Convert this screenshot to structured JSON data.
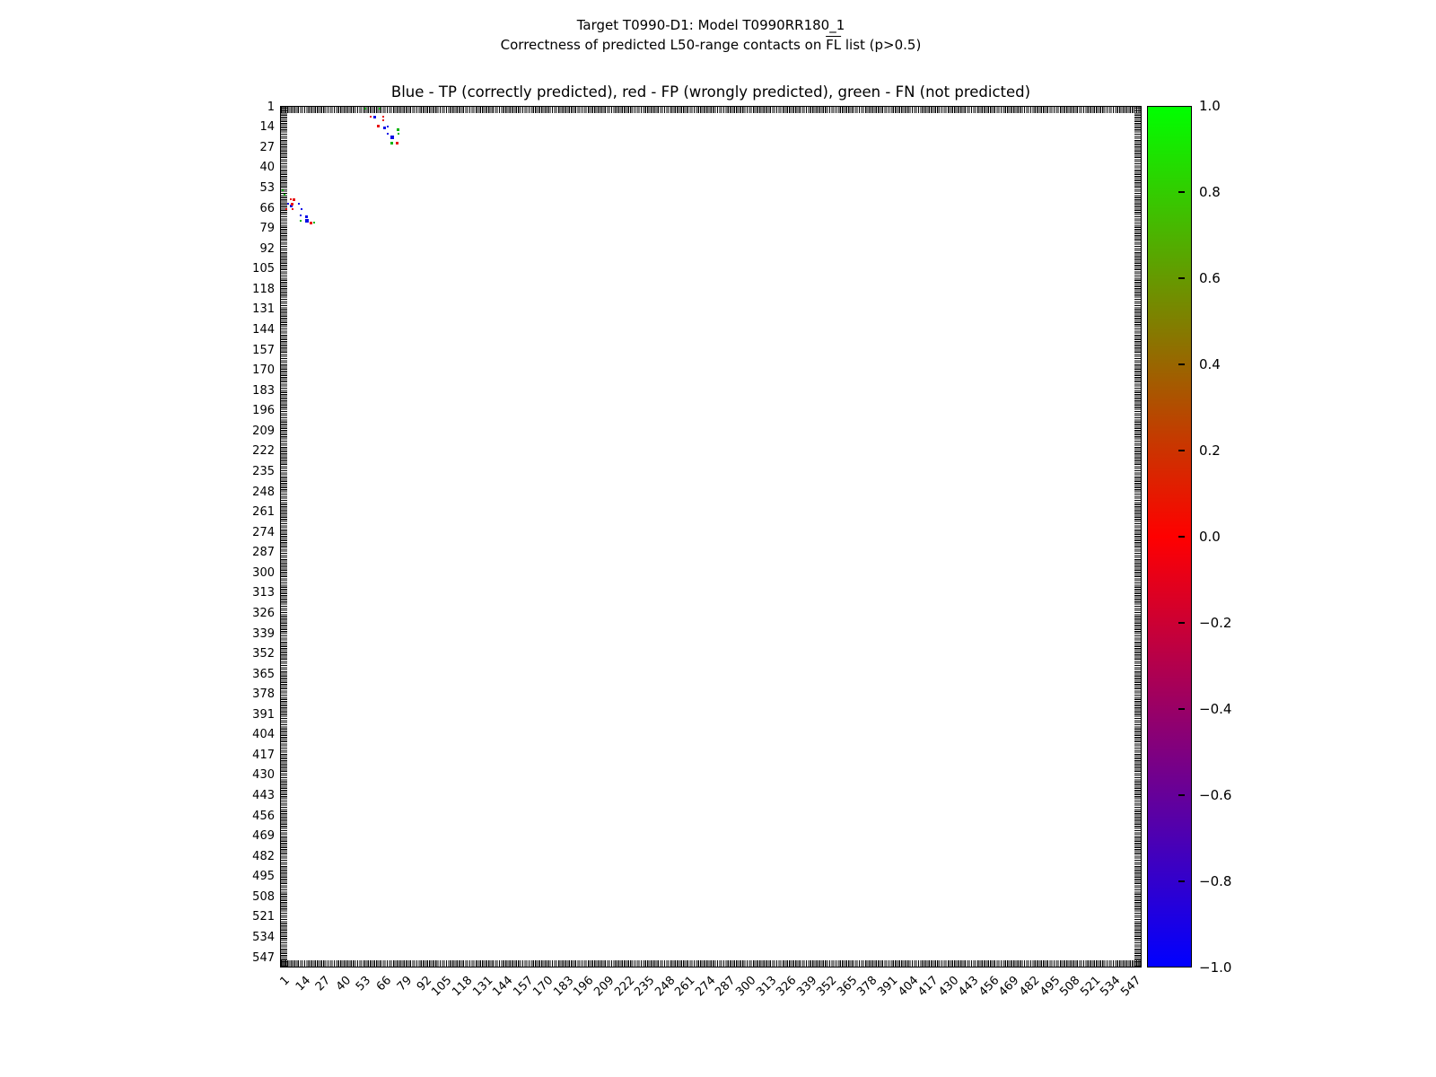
{
  "figure": {
    "title_line1": "Target T0990-D1: Model T0990RR180_1",
    "title_line2_prefix": "Correctness of predicted L50-range contacts on ",
    "title_line2_overline": "FL",
    "title_line2_suffix": " list (p>0.5)",
    "axes_title": "Blue - TP (correctly predicted), red - FP (wrongly predicted), green - FN (not predicted)"
  },
  "chart_data": {
    "type": "scatter",
    "title": "Blue - TP (correctly predicted), red - FP (wrongly predicted), green - FN (not predicted)",
    "xlabel": "",
    "ylabel": "",
    "xlim": [
      0,
      553
    ],
    "ylim": [
      553,
      0
    ],
    "y_axis_inverted": true,
    "grid": false,
    "x_ticks": [
      1,
      14,
      27,
      40,
      53,
      66,
      79,
      92,
      105,
      118,
      131,
      144,
      157,
      170,
      183,
      196,
      209,
      222,
      235,
      248,
      261,
      274,
      287,
      300,
      313,
      326,
      339,
      352,
      365,
      378,
      391,
      404,
      417,
      430,
      443,
      456,
      469,
      482,
      495,
      508,
      521,
      534,
      547
    ],
    "y_ticks": [
      1,
      14,
      27,
      40,
      53,
      66,
      79,
      92,
      105,
      118,
      131,
      144,
      157,
      170,
      183,
      196,
      209,
      222,
      235,
      248,
      261,
      274,
      287,
      300,
      313,
      326,
      339,
      352,
      365,
      378,
      391,
      404,
      417,
      430,
      443,
      456,
      469,
      482,
      495,
      508,
      521,
      534,
      547
    ],
    "series": [
      {
        "name": "TP (correctly predicted)",
        "color": "#0b0be6",
        "points": [
          [
            61,
            7,
            3
          ],
          [
            67,
            14,
            3
          ],
          [
            69,
            13,
            2
          ],
          [
            69,
            18,
            2
          ],
          [
            72,
            20,
            4
          ],
          [
            5,
            63,
            2
          ],
          [
            12,
            63,
            2
          ],
          [
            14,
            66,
            2
          ],
          [
            13,
            70,
            2
          ],
          [
            17,
            71,
            3
          ],
          [
            17,
            74,
            4
          ],
          [
            7,
            64,
            3
          ]
        ]
      },
      {
        "name": "FP (wrongly predicted)",
        "color": "#e81010",
        "points": [
          [
            58,
            7,
            2
          ],
          [
            66,
            7,
            2
          ],
          [
            66,
            9,
            2
          ],
          [
            63,
            13,
            3
          ],
          [
            75,
            24,
            3
          ],
          [
            7,
            60,
            2
          ],
          [
            9,
            60,
            3
          ],
          [
            8,
            63,
            3
          ],
          [
            4,
            66,
            2
          ],
          [
            8,
            66,
            2
          ],
          [
            20,
            75,
            3
          ]
        ]
      },
      {
        "name": "FN (not predicted)",
        "color": "#00b400",
        "points": [
          [
            55,
            2,
            2
          ],
          [
            64,
            2,
            2
          ],
          [
            76,
            15,
            3
          ],
          [
            76,
            18,
            2
          ],
          [
            72,
            24,
            3
          ],
          [
            2,
            54,
            2
          ],
          [
            3,
            57,
            2
          ],
          [
            13,
            74,
            2
          ],
          [
            22,
            75,
            2
          ]
        ]
      }
    ],
    "colorbar": {
      "vmin": -1.0,
      "vmax": 1.0,
      "tick_labels": [
        "1.0",
        "0.8",
        "0.6",
        "0.4",
        "0.2",
        "0.0",
        "−0.2",
        "−0.4",
        "−0.6",
        "−0.8",
        "−1.0"
      ],
      "gradient_top": "#00ff00",
      "gradient_mid": "#ff0000",
      "gradient_bottom": "#0000ff"
    }
  }
}
